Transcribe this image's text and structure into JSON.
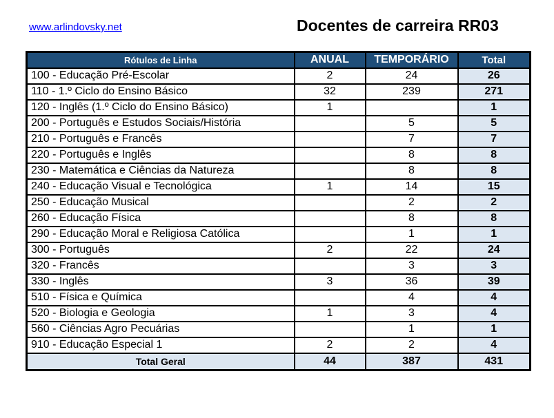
{
  "header": {
    "link": "www.arlindovsky.net",
    "title": "Docentes de carreira RR03"
  },
  "table": {
    "columns": [
      "Rótulos de Linha",
      "ANUAL",
      "TEMPORÁRIO",
      "Total"
    ],
    "rows": [
      {
        "label": "100 - Educação Pré-Escolar",
        "anual": "2",
        "temporario": "24",
        "total": "26"
      },
      {
        "label": "110 - 1.º Ciclo do Ensino Básico",
        "anual": "32",
        "temporario": "239",
        "total": "271"
      },
      {
        "label": "120 - Inglês (1.º Ciclo do Ensino Básico)",
        "anual": "1",
        "temporario": "",
        "total": "1"
      },
      {
        "label": "200 - Português e Estudos Sociais/História",
        "anual": "",
        "temporario": "5",
        "total": "5"
      },
      {
        "label": "210 - Português e Francês",
        "anual": "",
        "temporario": "7",
        "total": "7"
      },
      {
        "label": "220 - Português e Inglês",
        "anual": "",
        "temporario": "8",
        "total": "8"
      },
      {
        "label": "230 - Matemática e Ciências da Natureza",
        "anual": "",
        "temporario": "8",
        "total": "8"
      },
      {
        "label": "240 - Educação Visual e Tecnológica",
        "anual": "1",
        "temporario": "14",
        "total": "15"
      },
      {
        "label": "250 - Educação Musical",
        "anual": "",
        "temporario": "2",
        "total": "2"
      },
      {
        "label": "260 - Educação Física",
        "anual": "",
        "temporario": "8",
        "total": "8"
      },
      {
        "label": "290 - Educação Moral e Religiosa Católica",
        "anual": "",
        "temporario": "1",
        "total": "1"
      },
      {
        "label": "300 - Português",
        "anual": "2",
        "temporario": "22",
        "total": "24"
      },
      {
        "label": "320 - Francês",
        "anual": "",
        "temporario": "3",
        "total": "3"
      },
      {
        "label": "330 - Inglês",
        "anual": "3",
        "temporario": "36",
        "total": "39"
      },
      {
        "label": "510 - Física e Química",
        "anual": "",
        "temporario": "4",
        "total": "4"
      },
      {
        "label": "520 - Biologia e Geologia",
        "anual": "1",
        "temporario": "3",
        "total": "4"
      },
      {
        "label": "560 - Ciências Agro Pecuárias",
        "anual": "",
        "temporario": "1",
        "total": "1"
      },
      {
        "label": "910 - Educação Especial 1",
        "anual": "2",
        "temporario": "2",
        "total": "4"
      }
    ],
    "footer": {
      "label": "Total Geral",
      "anual": "44",
      "temporario": "387",
      "total": "431"
    }
  },
  "colors": {
    "header_bg": "#1F4E79",
    "header_text": "#FFFFFF",
    "total_col_bg": "#DCE6F1",
    "link": "#0000FF",
    "border": "#000000"
  }
}
